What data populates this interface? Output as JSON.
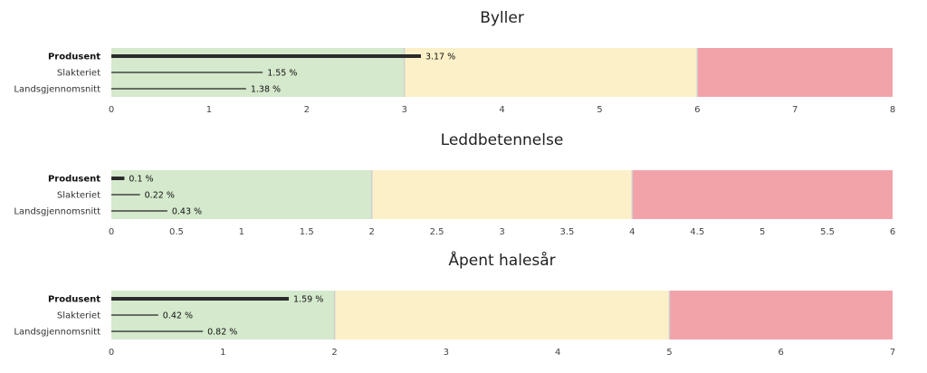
{
  "chart_data": [
    {
      "type": "bar",
      "title": "Byller",
      "xlim": [
        0,
        8
      ],
      "ticks": [
        "0",
        "1",
        "2",
        "3",
        "4",
        "5",
        "6",
        "7",
        "8"
      ],
      "bands": [
        {
          "from": 0,
          "to": 3,
          "color": "#d5e9cd"
        },
        {
          "from": 3,
          "to": 6,
          "color": "#fcf0c9"
        },
        {
          "from": 6,
          "to": 8,
          "color": "#f2a3aa"
        }
      ],
      "categories": [
        "Produsent",
        "Slakteriet",
        "Landsgjennomsnitt"
      ],
      "values": [
        3.17,
        1.55,
        1.38
      ],
      "value_labels": [
        "3.17 %",
        "1.55 %",
        "1.38 %"
      ]
    },
    {
      "type": "bar",
      "title": "Leddbetennelse",
      "xlim": [
        0,
        6
      ],
      "ticks": [
        "0",
        "0.5",
        "1",
        "1.5",
        "2",
        "2.5",
        "3",
        "3.5",
        "4",
        "4.5",
        "5",
        "5.5",
        "6"
      ],
      "bands": [
        {
          "from": 0,
          "to": 2,
          "color": "#d5e9cd"
        },
        {
          "from": 2,
          "to": 4,
          "color": "#fcf0c9"
        },
        {
          "from": 4,
          "to": 6,
          "color": "#f2a3aa"
        }
      ],
      "categories": [
        "Produsent",
        "Slakteriet",
        "Landsgjennomsnitt"
      ],
      "values": [
        0.1,
        0.22,
        0.43
      ],
      "value_labels": [
        "0.1 %",
        "0.22 %",
        "0.43 %"
      ]
    },
    {
      "type": "bar",
      "title": "Åpent halesår",
      "xlim": [
        0,
        7
      ],
      "ticks": [
        "0",
        "1",
        "2",
        "3",
        "4",
        "5",
        "6",
        "7"
      ],
      "bands": [
        {
          "from": 0,
          "to": 2,
          "color": "#d5e9cd"
        },
        {
          "from": 2,
          "to": 5,
          "color": "#fcf0c9"
        },
        {
          "from": 5,
          "to": 7,
          "color": "#f2a3aa"
        }
      ],
      "categories": [
        "Produsent",
        "Slakteriet",
        "Landsgjennomsnitt"
      ],
      "values": [
        1.59,
        0.42,
        0.82
      ],
      "value_labels": [
        "1.59 %",
        "0.42 %",
        "0.82 %"
      ]
    }
  ]
}
